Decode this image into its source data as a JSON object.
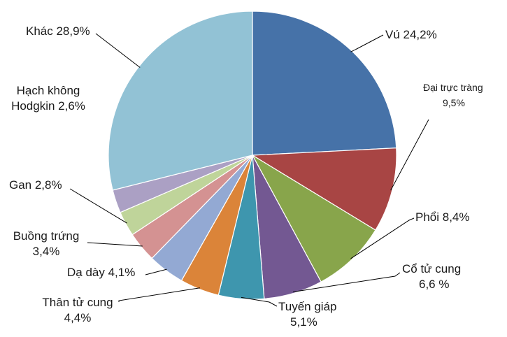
{
  "chart_data": {
    "type": "pie",
    "title": "",
    "slices": [
      {
        "name": "Vú",
        "value": 24.2,
        "label_lines": [
          "Vú 24,2%"
        ],
        "color": "#4672A8"
      },
      {
        "name": "Đại trực tràng",
        "value": 9.5,
        "label_lines": [
          "Đại trực tràng",
          "9,5%"
        ],
        "color": "#A84544"
      },
      {
        "name": "Phổi",
        "value": 8.4,
        "label_lines": [
          "Phổi 8,4%"
        ],
        "color": "#88A54B"
      },
      {
        "name": "Cổ tử cung",
        "value": 6.6,
        "label_lines": [
          "Cổ tử cung",
          "6,6 %"
        ],
        "color": "#735892"
      },
      {
        "name": "Tuyến giáp",
        "value": 5.1,
        "label_lines": [
          "Tuyến giáp",
          "5,1%"
        ],
        "color": "#3E96AE"
      },
      {
        "name": "Thân tử cung",
        "value": 4.4,
        "label_lines": [
          "Thân tử cung",
          "4,4%"
        ],
        "color": "#DB8439"
      },
      {
        "name": "Dạ dày",
        "value": 4.1,
        "label_lines": [
          "Dạ dày 4,1%"
        ],
        "color": "#93A9D3"
      },
      {
        "name": "Buồng trứng",
        "value": 3.4,
        "label_lines": [
          "Buồng trứng",
          "3,4%"
        ],
        "color": "#D49292"
      },
      {
        "name": "Gan",
        "value": 2.8,
        "label_lines": [
          "Gan 2,8%"
        ],
        "color": "#BFD49A"
      },
      {
        "name": "Hạch không Hodgkin",
        "value": 2.6,
        "label_lines": [
          "Hạch không",
          "Hodgkin 2,6%"
        ],
        "color": "#ABA0C4"
      },
      {
        "name": "Khác",
        "value": 28.9,
        "label_lines": [
          "Khác 28,9%"
        ],
        "color": "#92C2D5"
      }
    ]
  }
}
